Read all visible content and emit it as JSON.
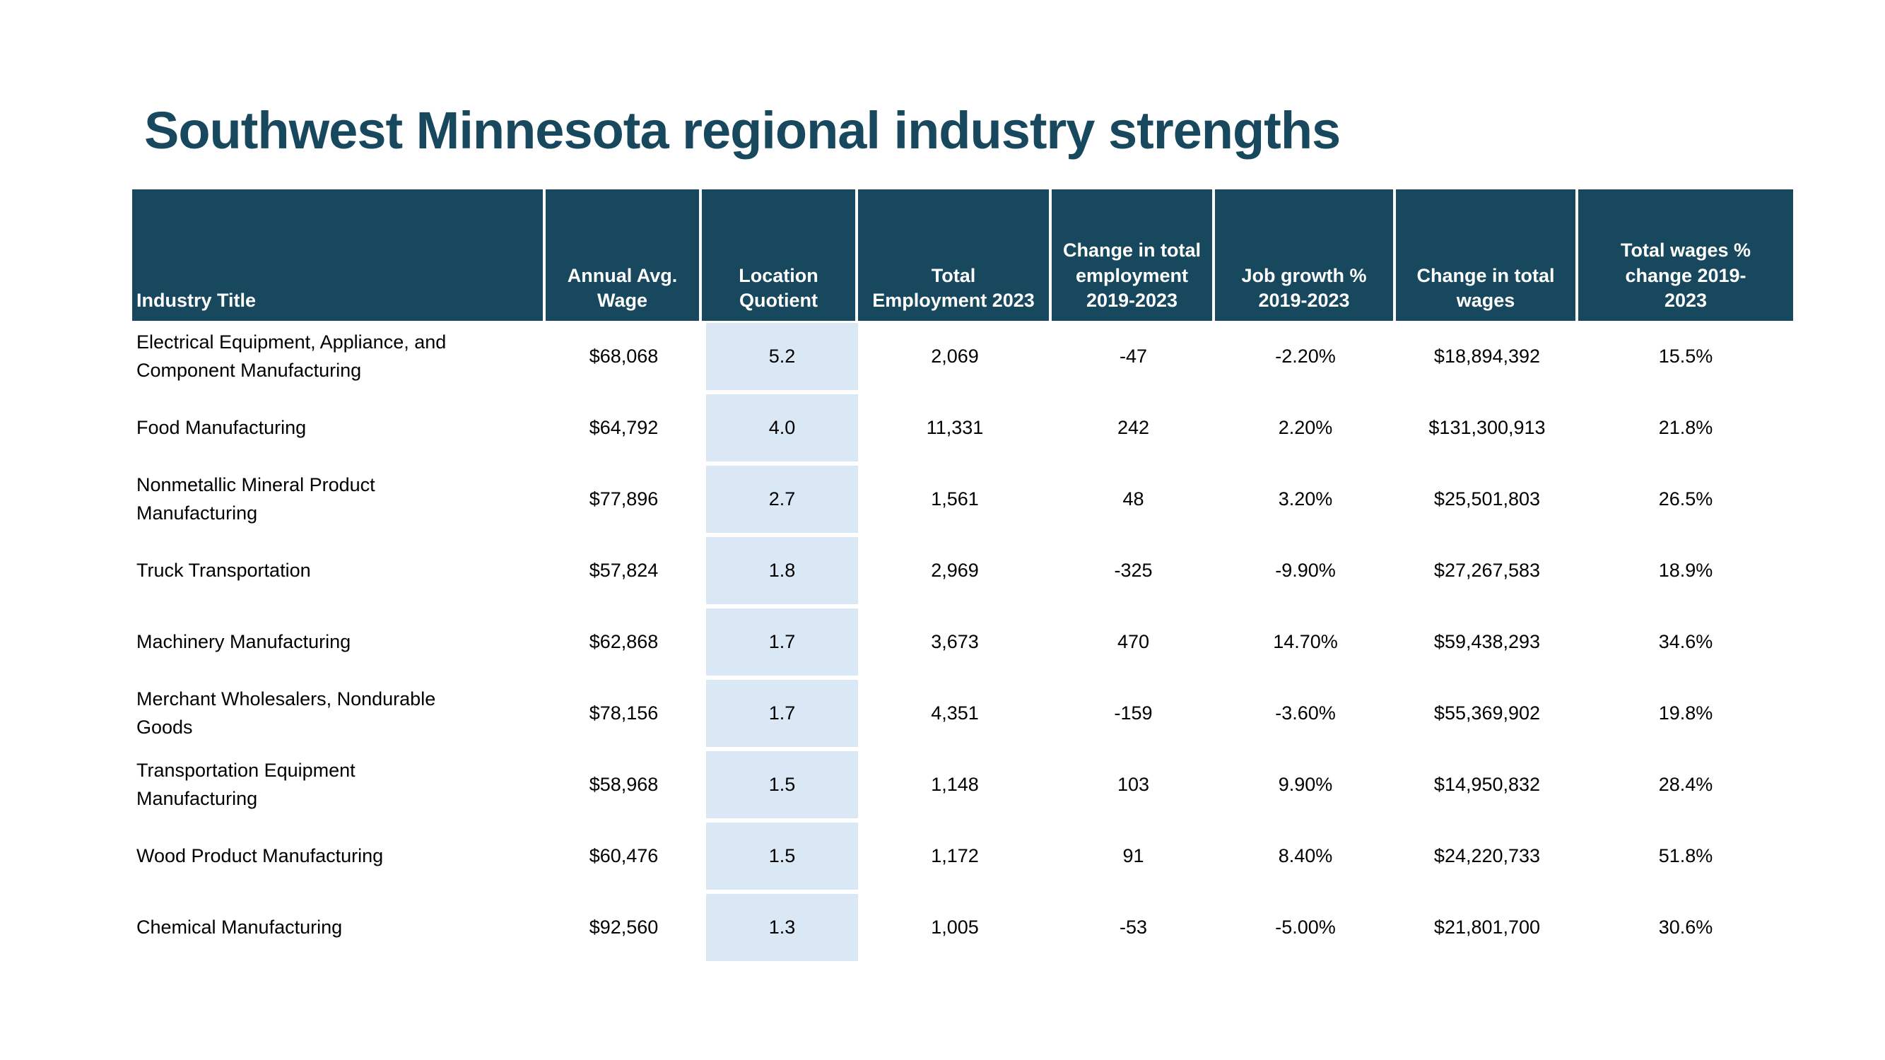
{
  "title": "Southwest Minnesota regional industry strengths",
  "colors": {
    "header_background": "#17485D",
    "header_text": "#ffffff",
    "title_text": "#17485D",
    "location_quotient_highlight": "#DAE7F5",
    "body_text": "#000000",
    "page_background": "#ffffff"
  },
  "chart_data": {
    "type": "table",
    "title": "Southwest Minnesota regional industry strengths",
    "columns": [
      {
        "key": "industry",
        "label": "Industry Title"
      },
      {
        "key": "annual_avg_wage",
        "label": "Annual Avg.\nWage"
      },
      {
        "key": "location_quotient",
        "label": "Location\nQuotient"
      },
      {
        "key": "total_employment_2023",
        "label": "Total\nEmployment 2023"
      },
      {
        "key": "change_in_total_employment_2019_2023",
        "label": "Change in total\nemployment\n2019-2023"
      },
      {
        "key": "job_growth_pct_2019_2023",
        "label": "Job growth %\n2019-2023"
      },
      {
        "key": "change_in_total_wages",
        "label": "Change in total\nwages"
      },
      {
        "key": "total_wages_pct_change_2019_2023",
        "label": "Total wages %\nchange 2019-\n2023"
      }
    ],
    "rows": [
      {
        "industry": "Electrical Equipment, Appliance, and\nComponent Manufacturing",
        "annual_avg_wage": "$68,068",
        "location_quotient": "5.2",
        "total_employment_2023": "2,069",
        "change_in_total_employment_2019_2023": "-47",
        "job_growth_pct_2019_2023": "-2.20%",
        "change_in_total_wages": "$18,894,392",
        "total_wages_pct_change_2019_2023": "15.5%"
      },
      {
        "industry": "Food Manufacturing",
        "annual_avg_wage": "$64,792",
        "location_quotient": "4.0",
        "total_employment_2023": "11,331",
        "change_in_total_employment_2019_2023": "242",
        "job_growth_pct_2019_2023": "2.20%",
        "change_in_total_wages": "$131,300,913",
        "total_wages_pct_change_2019_2023": "21.8%"
      },
      {
        "industry": "Nonmetallic Mineral Product\nManufacturing",
        "annual_avg_wage": "$77,896",
        "location_quotient": "2.7",
        "total_employment_2023": "1,561",
        "change_in_total_employment_2019_2023": "48",
        "job_growth_pct_2019_2023": "3.20%",
        "change_in_total_wages": "$25,501,803",
        "total_wages_pct_change_2019_2023": "26.5%"
      },
      {
        "industry": "Truck Transportation",
        "annual_avg_wage": "$57,824",
        "location_quotient": "1.8",
        "total_employment_2023": "2,969",
        "change_in_total_employment_2019_2023": "-325",
        "job_growth_pct_2019_2023": "-9.90%",
        "change_in_total_wages": "$27,267,583",
        "total_wages_pct_change_2019_2023": "18.9%"
      },
      {
        "industry": "Machinery Manufacturing",
        "annual_avg_wage": "$62,868",
        "location_quotient": "1.7",
        "total_employment_2023": "3,673",
        "change_in_total_employment_2019_2023": "470",
        "job_growth_pct_2019_2023": "14.70%",
        "change_in_total_wages": "$59,438,293",
        "total_wages_pct_change_2019_2023": "34.6%"
      },
      {
        "industry": "Merchant Wholesalers, Nondurable\nGoods",
        "annual_avg_wage": "$78,156",
        "location_quotient": "1.7",
        "total_employment_2023": "4,351",
        "change_in_total_employment_2019_2023": "-159",
        "job_growth_pct_2019_2023": "-3.60%",
        "change_in_total_wages": "$55,369,902",
        "total_wages_pct_change_2019_2023": "19.8%"
      },
      {
        "industry": "Transportation Equipment\nManufacturing",
        "annual_avg_wage": "$58,968",
        "location_quotient": "1.5",
        "total_employment_2023": "1,148",
        "change_in_total_employment_2019_2023": "103",
        "job_growth_pct_2019_2023": "9.90%",
        "change_in_total_wages": "$14,950,832",
        "total_wages_pct_change_2019_2023": "28.4%"
      },
      {
        "industry": "Wood Product Manufacturing",
        "annual_avg_wage": "$60,476",
        "location_quotient": "1.5",
        "total_employment_2023": "1,172",
        "change_in_total_employment_2019_2023": "91",
        "job_growth_pct_2019_2023": "8.40%",
        "change_in_total_wages": "$24,220,733",
        "total_wages_pct_change_2019_2023": "51.8%"
      },
      {
        "industry": "Chemical Manufacturing",
        "annual_avg_wage": "$92,560",
        "location_quotient": "1.3",
        "total_employment_2023": "1,005",
        "change_in_total_employment_2019_2023": "-53",
        "job_growth_pct_2019_2023": "-5.00%",
        "change_in_total_wages": "$21,801,700",
        "total_wages_pct_change_2019_2023": "30.6%"
      }
    ]
  }
}
